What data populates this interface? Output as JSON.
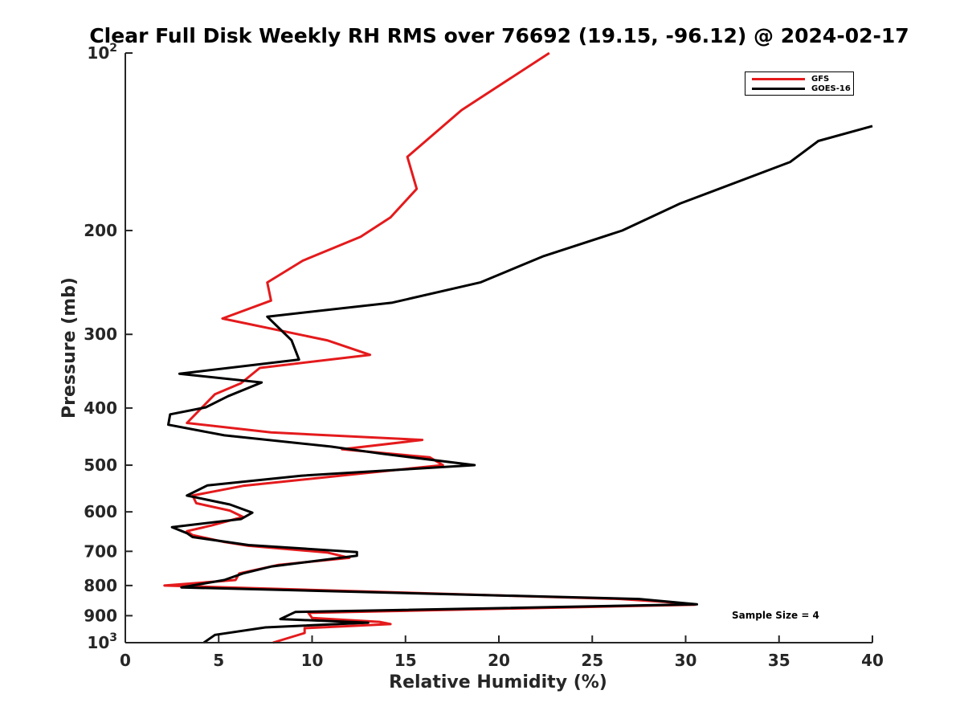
{
  "chart_data": {
    "type": "line",
    "title": "Clear Full Disk Weekly RH RMS over 76692 (19.15, -96.12) @ 2024-02-17",
    "xlabel": "Relative Humidity (%)",
    "ylabel": "Pressure (mb)",
    "xlim": [
      0,
      40
    ],
    "ylim": [
      100,
      1000
    ],
    "yscale": "log",
    "y_inverted": true,
    "grid": false,
    "legend_position": "top-right",
    "x_ticks": [
      "0",
      "5",
      "10",
      "15",
      "20",
      "25",
      "30",
      "35",
      "40"
    ],
    "y_ticks": [
      {
        "value": 100,
        "label": "10",
        "sup": "2"
      },
      {
        "value": 200,
        "label": "200"
      },
      {
        "value": 300,
        "label": "300"
      },
      {
        "value": 400,
        "label": "400"
      },
      {
        "value": 500,
        "label": "500"
      },
      {
        "value": 600,
        "label": "600"
      },
      {
        "value": 700,
        "label": "700"
      },
      {
        "value": 800,
        "label": "800"
      },
      {
        "value": 900,
        "label": "900"
      },
      {
        "value": 1000,
        "label": "10",
        "sup": "3"
      }
    ],
    "annotation": "Sample Size = 4",
    "series": [
      {
        "name": "GFS",
        "color": "#e41a1c",
        "points": [
          [
            22.7,
            100
          ],
          [
            18.0,
            125
          ],
          [
            15.1,
            150
          ],
          [
            15.6,
            170
          ],
          [
            14.2,
            190
          ],
          [
            12.6,
            205
          ],
          [
            9.5,
            225
          ],
          [
            7.6,
            245
          ],
          [
            7.8,
            263
          ],
          [
            5.2,
            282
          ],
          [
            10.8,
            307
          ],
          [
            13.1,
            325
          ],
          [
            7.2,
            342
          ],
          [
            6.2,
            363
          ],
          [
            4.8,
            379
          ],
          [
            3.3,
            424
          ],
          [
            7.8,
            440
          ],
          [
            15.9,
            453
          ],
          [
            11.6,
            470
          ],
          [
            16.3,
            485
          ],
          [
            17.0,
            500
          ],
          [
            12.5,
            517
          ],
          [
            6.3,
            542
          ],
          [
            3.6,
            563
          ],
          [
            3.8,
            580
          ],
          [
            5.6,
            597
          ],
          [
            6.3,
            612
          ],
          [
            4.6,
            633
          ],
          [
            3.3,
            647
          ],
          [
            3.6,
            657
          ],
          [
            5.3,
            675
          ],
          [
            6.6,
            685
          ],
          [
            10.8,
            703
          ],
          [
            12.0,
            718
          ],
          [
            8.2,
            738
          ],
          [
            6.1,
            763
          ],
          [
            5.9,
            783
          ],
          [
            2.1,
            800
          ],
          [
            26.5,
            843
          ],
          [
            28.9,
            853
          ],
          [
            30.5,
            862
          ],
          [
            9.8,
            890
          ],
          [
            10.0,
            908
          ],
          [
            13.6,
            922
          ],
          [
            14.2,
            930
          ],
          [
            9.6,
            945
          ],
          [
            9.6,
            963
          ],
          [
            7.9,
            1000
          ]
        ]
      },
      {
        "name": "GOES-16",
        "color": "#000000",
        "points": [
          [
            40.0,
            133
          ],
          [
            37.1,
            141
          ],
          [
            35.6,
            153
          ],
          [
            29.7,
            180
          ],
          [
            26.6,
            200
          ],
          [
            22.4,
            221
          ],
          [
            19.0,
            245
          ],
          [
            14.3,
            265
          ],
          [
            7.6,
            280
          ],
          [
            8.9,
            307
          ],
          [
            9.3,
            331
          ],
          [
            2.9,
            350
          ],
          [
            7.3,
            362
          ],
          [
            5.5,
            382
          ],
          [
            4.3,
            399
          ],
          [
            2.4,
            410
          ],
          [
            2.3,
            427
          ],
          [
            5.3,
            445
          ],
          [
            11.0,
            465
          ],
          [
            13.7,
            478
          ],
          [
            18.7,
            500
          ],
          [
            9.4,
            521
          ],
          [
            4.4,
            541
          ],
          [
            3.3,
            563
          ],
          [
            5.6,
            583
          ],
          [
            6.8,
            602
          ],
          [
            6.2,
            617
          ],
          [
            2.5,
            637
          ],
          [
            3.3,
            652
          ],
          [
            3.6,
            662
          ],
          [
            6.6,
            683
          ],
          [
            12.4,
            702
          ],
          [
            12.4,
            712
          ],
          [
            7.8,
            743
          ],
          [
            6.3,
            763
          ],
          [
            5.3,
            783
          ],
          [
            3.0,
            806
          ],
          [
            27.5,
            843
          ],
          [
            30.6,
            861
          ],
          [
            9.1,
            887
          ],
          [
            8.3,
            912
          ],
          [
            13.0,
            925
          ],
          [
            7.5,
            942
          ],
          [
            4.8,
            970
          ],
          [
            4.2,
            1000
          ]
        ]
      }
    ]
  }
}
